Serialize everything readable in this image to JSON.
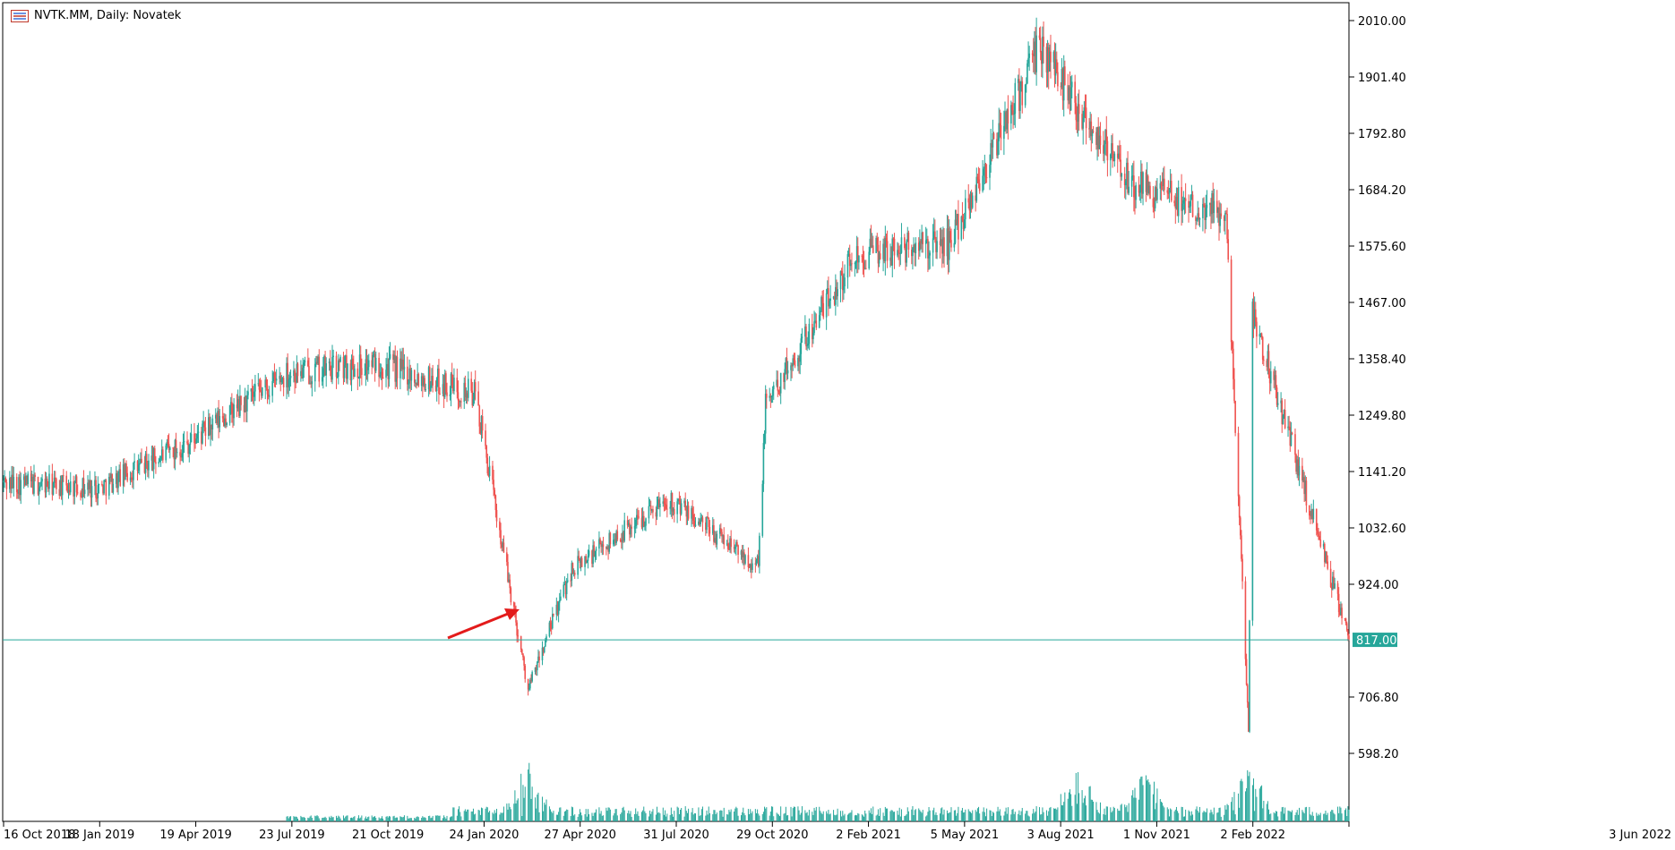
{
  "header": {
    "title": "NVTK.MM, Daily:  Novatek",
    "icon": "chart-window-icon"
  },
  "colors": {
    "bull": "#26a69a",
    "bear": "#ef5350",
    "price_line": "#26a69a",
    "price_tag_bg": "#26a69a",
    "arrow": "#e31b1b",
    "volume": "#26a69a",
    "axis": "#000000"
  },
  "chart_data": {
    "type": "candlestick",
    "title": "NVTK.MM, Daily:  Novatek",
    "x_tick_labels": [
      "16 Oct 2018",
      "18 Jan 2019",
      "19 Apr 2019",
      "23 Jul 2019",
      "21 Oct 2019",
      "24 Jan 2020",
      "27 Apr 2020",
      "31 Jul 2020",
      "29 Oct 2020",
      "2 Feb 2021",
      "5 May 2021",
      "3 Aug 2021",
      "1 Nov 2021",
      "2 Feb 2022",
      "3 Jun 2022"
    ],
    "y_tick_labels": [
      "2010.00",
      "1901.40",
      "1792.80",
      "1684.20",
      "1575.60",
      "1467.00",
      "1358.40",
      "1249.80",
      "1141.20",
      "1032.60",
      "924.00",
      "706.80",
      "598.20"
    ],
    "ylim": [
      500,
      2030
    ],
    "current_price": "817.00",
    "price_path": [
      [
        "16 Oct 2018",
        1120
      ],
      [
        "18 Jan 2019",
        1110
      ],
      [
        "19 Apr 2019",
        1200
      ],
      [
        "23 Jul 2019",
        1330
      ],
      [
        "21 Oct 2019",
        1350
      ],
      [
        "24 Jan 2020",
        1290
      ],
      [
        "mid Mar 2020",
        720
      ],
      [
        "27 Apr 2020",
        950
      ],
      [
        "31 Jul 2020",
        1090
      ],
      [
        "29 Oct 2020",
        960
      ],
      [
        "early Nov 2020",
        1270
      ],
      [
        "2 Feb 2021",
        1560
      ],
      [
        "5 May 2021",
        1580
      ],
      [
        "3 Aug 2021",
        1960
      ],
      [
        "1 Nov 2021",
        1690
      ],
      [
        "2 Feb 2022",
        1640
      ],
      [
        "24 Feb 2022",
        650
      ],
      [
        "late Feb 2022",
        1450
      ],
      [
        "3 Jun 2022",
        817
      ]
    ],
    "volume_profile": "low until Jul 2019, spike in Mar 2020, moderate afterwards, spikes in Sep 2021, Nov 2021, Feb 2022",
    "grid": false,
    "annotation": "red arrow pointing to the March 2020 low"
  }
}
